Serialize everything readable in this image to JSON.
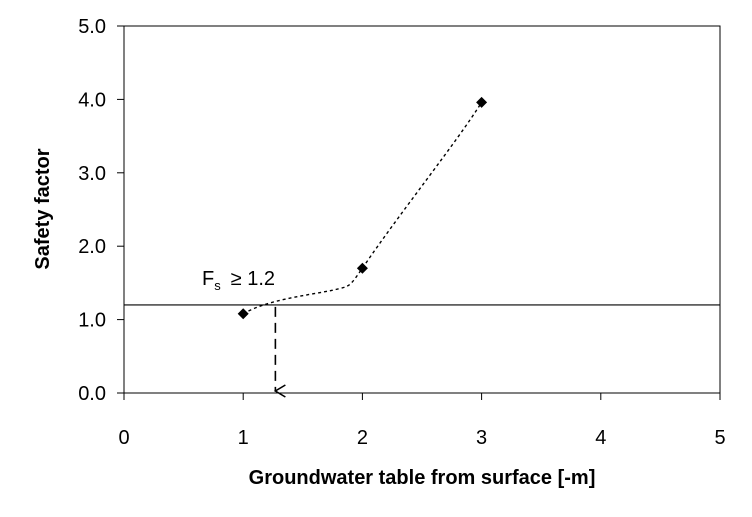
{
  "chart_data": {
    "type": "scatter",
    "title": "",
    "xlabel": "Groundwater table from surface [-m]",
    "ylabel": "Safety factor",
    "xlim": [
      0,
      5
    ],
    "ylim": [
      0,
      5
    ],
    "x_ticks": [
      0,
      1,
      2,
      3,
      4,
      5
    ],
    "x_tick_labels": [
      "0",
      "1",
      "2",
      "3",
      "4",
      "5"
    ],
    "y_ticks": [
      0,
      1,
      2,
      3,
      4,
      5
    ],
    "y_tick_labels": [
      "0.0",
      "1.0",
      "2.0",
      "3.0",
      "4.0",
      "5.0"
    ],
    "grid": false,
    "legend": "none",
    "series": [
      {
        "x": [
          1,
          2,
          3
        ],
        "y": [
          1.08,
          1.7,
          3.96
        ],
        "marker": "diamond",
        "color": "#000000",
        "trendline": "dotted smooth curve"
      }
    ],
    "reference_line": {
      "y": 1.2
    },
    "annotation": {
      "main": "F",
      "subscript": "s",
      "relation": "≥ 1.2"
    },
    "arrow": {
      "x": 1.27,
      "from_y": 1.2,
      "to_y": 0,
      "style": "dashed",
      "direction": "down"
    }
  }
}
